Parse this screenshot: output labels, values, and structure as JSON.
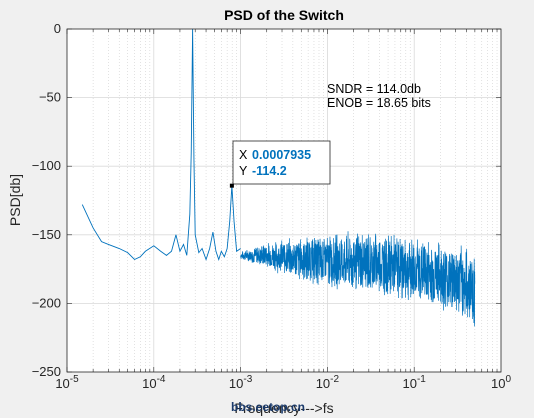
{
  "chart_data": {
    "type": "line",
    "title": "PSD of the Switch",
    "xlabel": "Frequency--->fs",
    "ylabel": "PSD[db]",
    "xscale": "log",
    "xlim": [
      1e-05,
      1
    ],
    "ylim": [
      -250,
      0
    ],
    "grid": "on",
    "x_ticks": [
      "10^-5",
      "10^-4",
      "10^-3",
      "10^-2",
      "10^-1",
      "10^0"
    ],
    "y_ticks": [
      "0",
      "−50",
      "−100",
      "−150",
      "−200",
      "−250"
    ],
    "color": "#0072bd",
    "series": [
      {
        "points": [
          [
            1.5e-05,
            -128
          ],
          [
            2e-05,
            -145
          ],
          [
            2.5e-05,
            -155
          ],
          [
            3e-05,
            -157
          ],
          [
            4e-05,
            -160
          ],
          [
            5e-05,
            -163
          ],
          [
            6e-05,
            -168
          ],
          [
            7e-05,
            -166
          ],
          [
            8e-05,
            -162
          ],
          [
            0.0001,
            -158
          ],
          [
            0.00012,
            -162
          ],
          [
            0.00014,
            -165
          ],
          [
            0.00016,
            -162
          ],
          [
            0.00018,
            -150
          ],
          [
            0.0002,
            -162
          ],
          [
            0.00022,
            -157
          ],
          [
            0.00024,
            -165
          ],
          [
            0.00026,
            -135
          ],
          [
            0.00027,
            -90
          ],
          [
            0.00028,
            0
          ],
          [
            0.00029,
            -95
          ],
          [
            0.0003,
            -150
          ],
          [
            0.00033,
            -163
          ],
          [
            0.00036,
            -160
          ],
          [
            0.0004,
            -168
          ],
          [
            0.00044,
            -160
          ],
          [
            0.00048,
            -148
          ],
          [
            0.00052,
            -162
          ],
          [
            0.00056,
            -168
          ],
          [
            0.0006,
            -162
          ],
          [
            0.00065,
            -166
          ],
          [
            0.0007,
            -160
          ],
          [
            0.00075,
            -140
          ],
          [
            0.0007935,
            -114.2
          ],
          [
            0.00084,
            -140
          ],
          [
            0.0009,
            -162
          ],
          [
            0.001,
            -160
          ]
        ],
        "noise_band": [
          [
            0.001,
            -162,
            -168
          ],
          [
            0.002,
            -155,
            -175
          ],
          [
            0.005,
            -150,
            -185
          ],
          [
            0.01,
            -148,
            -190
          ],
          [
            0.03,
            -145,
            -195
          ],
          [
            0.1,
            -150,
            -200
          ],
          [
            0.3,
            -155,
            -210
          ],
          [
            0.5,
            -160,
            -220
          ]
        ]
      }
    ],
    "annotations": {
      "sndr": "SNDR = 114.0db",
      "enob": "ENOB = 18.65 bits"
    },
    "datatip": {
      "x_key": "X",
      "x_value": "0.0007935",
      "y_key": "Y",
      "y_value": "-114.2"
    }
  },
  "watermark": "bbs.eetop.cn"
}
